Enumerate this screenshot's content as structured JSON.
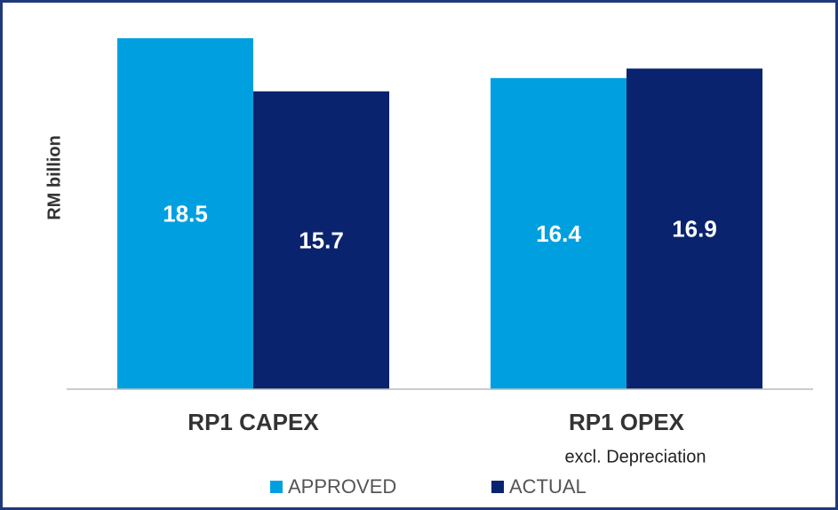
{
  "chart_data": {
    "type": "bar",
    "y_label": "RM billion",
    "categories": [
      "RP1 CAPEX",
      "RP1 OPEX"
    ],
    "category_notes": [
      null,
      "excl. Depreciation"
    ],
    "series": [
      {
        "name": "APPROVED",
        "color": "#00a0e0",
        "values": [
          18.5,
          16.4
        ]
      },
      {
        "name": "ACTUAL",
        "color": "#0a236e",
        "values": [
          15.7,
          16.9
        ]
      }
    ],
    "ylim": [
      0,
      20
    ],
    "legend": "bottom"
  }
}
